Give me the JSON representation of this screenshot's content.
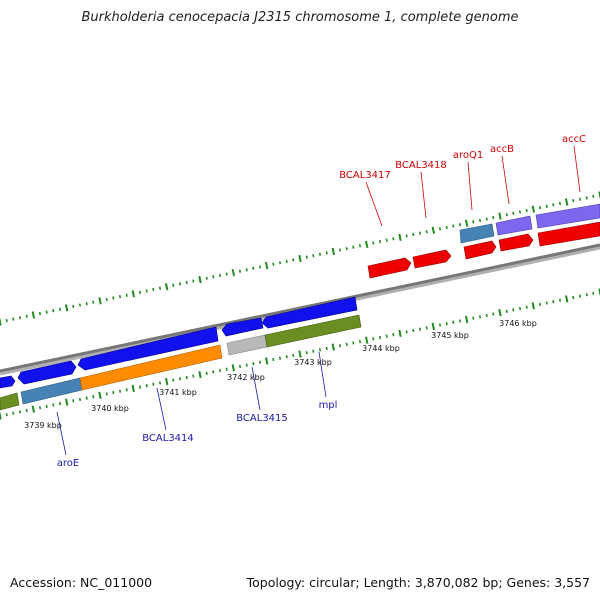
{
  "title": "Burkholderia cenocepacia J2315 chromosome 1, complete genome",
  "accession": "Accession: NC_011000",
  "summary": "Topology: circular; Length: 3,870,082 bp; Genes: 3,557",
  "kbp_labels": [
    "3739 kbp",
    "3740 kbp",
    "3741 kbp",
    "3742 kbp",
    "3743 kbp",
    "3744 kbp",
    "3745 kbp",
    "3746 kbp"
  ],
  "gene_labels_forward": [
    "BCAL3417",
    "BCAL3418",
    "aroQ1",
    "accB",
    "accC"
  ],
  "gene_labels_reverse": [
    "aroE",
    "BCAL3414",
    "BCAL3415",
    "mpl"
  ],
  "colors": {
    "forward_label": "#cc0000",
    "reverse_label": "#1a1aaa",
    "gene_red": "#ee0000",
    "gene_blue": "#1111ee",
    "gene_orange": "#ff8c00",
    "gene_olive": "#6b8e23",
    "gene_steel": "#4682b4",
    "gene_purple": "#7b68ee",
    "gene_gray": "#b8b8b8",
    "backbone": "#888888",
    "ticks": "#228b22"
  }
}
